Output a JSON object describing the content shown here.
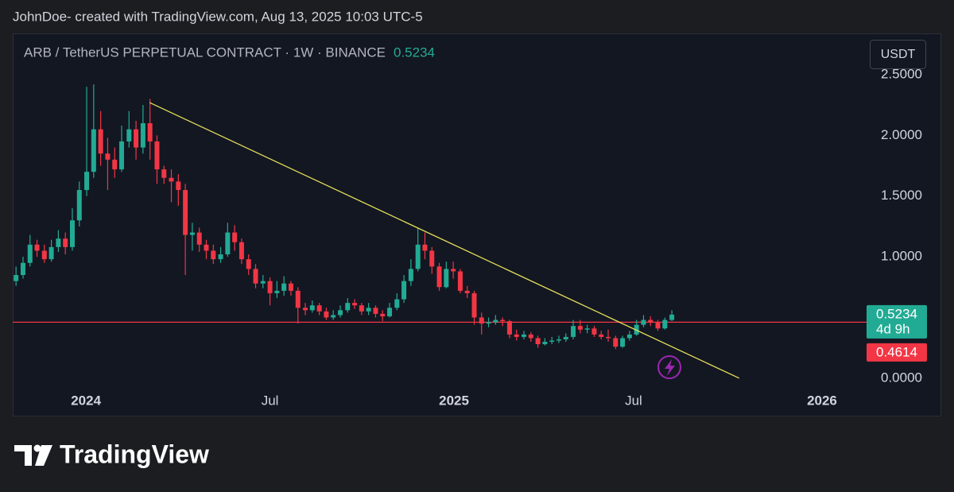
{
  "header": {
    "attribution": "JohnDoe- created with TradingView.com, Aug 13, 2025 10:03 UTC-5",
    "currency": "USDT",
    "watermark": "TradingView"
  },
  "chart_data": {
    "type": "candlestick",
    "title": "ARB / TetherUS PERPETUAL CONTRACT · 1W · BINANCE",
    "last_price": 0.5234,
    "countdown": "4d 9h",
    "price_line": 0.4614,
    "up_color": "#22ab94",
    "down_color": "#f23645",
    "price_line_color": "#f23645",
    "trendline": {
      "x": [
        2024.173,
        2025.775
      ],
      "y": [
        2.27,
        0
      ],
      "color": "#e6df5a"
    },
    "xlim": [
      2023.801,
      2026.121
    ],
    "ylim": [
      -0.06,
      2.84
    ],
    "xticks": [
      2024,
      {
        "value": 2024.5,
        "label": "Jul"
      },
      2025,
      {
        "value": 2025.488,
        "label": "Jul"
      },
      2026
    ],
    "yticks": [
      {
        "value": 0,
        "label": "0.0000"
      },
      {
        "value": 1,
        "label": "1.0000"
      },
      {
        "value": 1.5,
        "label": "1.5000"
      },
      {
        "value": 2,
        "label": "2.0000"
      },
      {
        "value": 2.5,
        "label": "2.5000"
      }
    ],
    "grid": false,
    "x": [
      2023.81,
      2023.829,
      2023.848,
      2023.867,
      2023.887,
      2023.906,
      2023.925,
      2023.944,
      2023.963,
      2023.982,
      2024.002,
      2024.021,
      2024.04,
      2024.059,
      2024.078,
      2024.097,
      2024.117,
      2024.136,
      2024.155,
      2024.174,
      2024.193,
      2024.212,
      2024.232,
      2024.251,
      2024.27,
      2024.289,
      2024.308,
      2024.327,
      2024.346,
      2024.366,
      2024.385,
      2024.404,
      2024.423,
      2024.442,
      2024.461,
      2024.481,
      2024.5,
      2024.519,
      2024.538,
      2024.557,
      2024.576,
      2024.596,
      2024.615,
      2024.634,
      2024.653,
      2024.672,
      2024.691,
      2024.711,
      2024.73,
      2024.749,
      2024.768,
      2024.787,
      2024.806,
      2024.825,
      2024.845,
      2024.864,
      2024.883,
      2024.902,
      2024.921,
      2024.94,
      2024.96,
      2024.979,
      2024.998,
      2025.017,
      2025.036,
      2025.055,
      2025.075,
      2025.094,
      2025.113,
      2025.132,
      2025.151,
      2025.17,
      2025.19,
      2025.209,
      2025.228,
      2025.247,
      2025.266,
      2025.285,
      2025.304,
      2025.324,
      2025.343,
      2025.362,
      2025.381,
      2025.4,
      2025.419,
      2025.439,
      2025.458,
      2025.477,
      2025.496,
      2025.515,
      2025.534,
      2025.554,
      2025.573,
      2025.592
    ],
    "open": [
      0.8,
      0.85,
      0.95,
      1.1,
      1.05,
      0.98,
      1.08,
      1.15,
      1.08,
      1.3,
      1.55,
      1.7,
      2.05,
      1.85,
      1.8,
      1.72,
      1.95,
      2.05,
      1.9,
      2.1,
      1.95,
      1.72,
      1.65,
      1.62,
      1.55,
      1.18,
      1.2,
      1.1,
      1.05,
      0.98,
      1.02,
      1.2,
      1.12,
      0.98,
      0.9,
      0.78,
      0.8,
      0.7,
      0.72,
      0.78,
      0.72,
      0.58,
      0.56,
      0.6,
      0.55,
      0.5,
      0.52,
      0.56,
      0.62,
      0.6,
      0.55,
      0.58,
      0.53,
      0.51,
      0.58,
      0.65,
      0.8,
      0.9,
      1.1,
      1.05,
      0.92,
      0.75,
      0.9,
      0.88,
      0.72,
      0.7,
      0.5,
      0.45,
      0.46,
      0.48,
      0.47,
      0.36,
      0.34,
      0.36,
      0.33,
      0.28,
      0.3,
      0.31,
      0.32,
      0.34,
      0.43,
      0.4,
      0.41,
      0.36,
      0.34,
      0.33,
      0.26,
      0.33,
      0.36,
      0.44,
      0.48,
      0.46,
      0.41,
      0.48
    ],
    "high": [
      0.92,
      1.0,
      1.18,
      1.14,
      1.1,
      1.14,
      1.22,
      1.2,
      1.4,
      1.62,
      2.4,
      2.42,
      2.2,
      1.98,
      1.9,
      2.08,
      2.2,
      2.12,
      2.25,
      2.3,
      2.0,
      1.75,
      1.72,
      1.68,
      1.6,
      1.28,
      1.24,
      1.14,
      1.1,
      1.08,
      1.28,
      1.26,
      1.15,
      1.02,
      0.94,
      0.85,
      0.83,
      0.8,
      0.84,
      0.8,
      0.75,
      0.62,
      0.64,
      0.62,
      0.58,
      0.56,
      0.6,
      0.66,
      0.65,
      0.62,
      0.62,
      0.6,
      0.56,
      0.62,
      0.7,
      0.85,
      0.98,
      1.24,
      1.2,
      1.08,
      0.95,
      0.96,
      0.96,
      0.9,
      0.76,
      0.72,
      0.54,
      0.5,
      0.52,
      0.5,
      0.48,
      0.4,
      0.39,
      0.38,
      0.35,
      0.33,
      0.34,
      0.35,
      0.37,
      0.48,
      0.48,
      0.44,
      0.43,
      0.39,
      0.4,
      0.35,
      0.35,
      0.39,
      0.48,
      0.52,
      0.51,
      0.48,
      0.5,
      0.56
    ],
    "low": [
      0.76,
      0.82,
      0.92,
      1.0,
      0.95,
      0.96,
      1.04,
      1.02,
      1.05,
      1.25,
      1.5,
      1.65,
      1.75,
      1.55,
      1.65,
      1.7,
      1.9,
      1.8,
      1.85,
      1.8,
      1.6,
      1.6,
      1.45,
      1.42,
      0.85,
      1.05,
      1.04,
      0.98,
      0.94,
      0.95,
      1.0,
      1.05,
      0.94,
      0.85,
      0.74,
      0.74,
      0.6,
      0.66,
      0.68,
      0.68,
      0.45,
      0.52,
      0.54,
      0.52,
      0.48,
      0.48,
      0.5,
      0.54,
      0.57,
      0.52,
      0.52,
      0.5,
      0.47,
      0.5,
      0.56,
      0.62,
      0.76,
      0.88,
      0.98,
      0.86,
      0.72,
      0.74,
      0.82,
      0.7,
      0.66,
      0.44,
      0.36,
      0.42,
      0.44,
      0.43,
      0.33,
      0.31,
      0.32,
      0.3,
      0.25,
      0.27,
      0.28,
      0.29,
      0.3,
      0.32,
      0.37,
      0.37,
      0.34,
      0.32,
      0.3,
      0.24,
      0.25,
      0.31,
      0.35,
      0.42,
      0.43,
      0.39,
      0.4,
      0.47
    ],
    "close": [
      0.85,
      0.95,
      1.1,
      1.05,
      0.98,
      1.08,
      1.15,
      1.08,
      1.3,
      1.55,
      1.7,
      2.05,
      1.85,
      1.8,
      1.72,
      1.95,
      2.05,
      1.9,
      2.1,
      1.95,
      1.72,
      1.65,
      1.62,
      1.55,
      1.18,
      1.2,
      1.1,
      1.05,
      0.98,
      1.02,
      1.2,
      1.12,
      0.98,
      0.9,
      0.78,
      0.8,
      0.7,
      0.72,
      0.78,
      0.72,
      0.58,
      0.56,
      0.6,
      0.55,
      0.5,
      0.52,
      0.56,
      0.62,
      0.6,
      0.55,
      0.58,
      0.53,
      0.51,
      0.58,
      0.65,
      0.8,
      0.9,
      1.1,
      1.05,
      0.92,
      0.75,
      0.9,
      0.88,
      0.72,
      0.7,
      0.5,
      0.45,
      0.46,
      0.48,
      0.47,
      0.36,
      0.34,
      0.36,
      0.33,
      0.28,
      0.3,
      0.31,
      0.32,
      0.34,
      0.43,
      0.4,
      0.41,
      0.36,
      0.34,
      0.33,
      0.26,
      0.33,
      0.36,
      0.44,
      0.48,
      0.46,
      0.41,
      0.48,
      0.5234
    ]
  }
}
